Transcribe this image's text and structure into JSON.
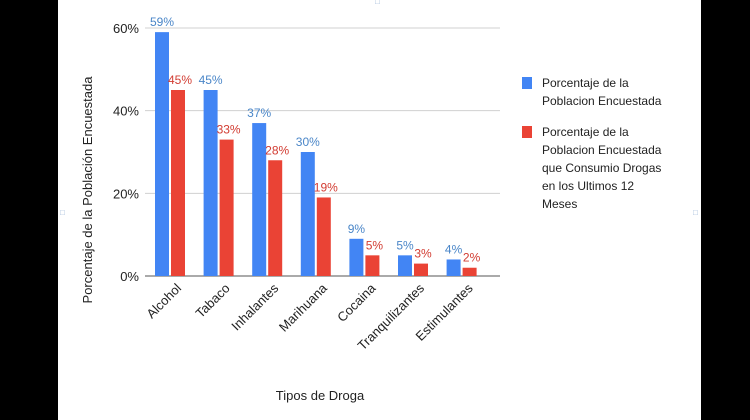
{
  "chart_data": {
    "type": "bar",
    "categories": [
      "Alcohol",
      "Tabaco",
      "Inhalantes",
      "Marihuana",
      "Cocaina",
      "Tranquilizantes",
      "Estimulantes"
    ],
    "series": [
      {
        "name": "Porcentaje de la Poblacion Encuestada",
        "color": "#4285f4",
        "label_color": "#4a86c8",
        "values": [
          59,
          45,
          37,
          30,
          9,
          5,
          4
        ],
        "labels": [
          "59%",
          "45%",
          "37%",
          "30%",
          "9%",
          "5%",
          "4%"
        ]
      },
      {
        "name": "Porcentaje de la Poblacion Encuestada que Consumio Drogas en los Ultimos 12 Meses",
        "color": "#ea4335",
        "label_color": "#d23c32",
        "values": [
          45,
          33,
          28,
          19,
          5,
          3,
          2
        ],
        "labels": [
          "45%",
          "33%",
          "28%",
          "19%",
          "5%",
          "3%",
          "2%"
        ]
      }
    ],
    "y_ticks": [
      "0%",
      "20%",
      "40%",
      "60%"
    ],
    "y_tick_values": [
      0,
      20,
      40,
      60
    ],
    "ylim": [
      0,
      60
    ],
    "xlabel": "Tipos de Droga",
    "ylabel": "Porcentaje de la Población Encuestada",
    "legend": {
      "position": "right",
      "entries": [
        [
          "Porcentaje de la",
          "Poblacion Encuestada"
        ],
        [
          "Porcentaje de la",
          "Poblacion Encuestada",
          "que Consumio Drogas",
          "en los Ultimos 12",
          "Meses"
        ]
      ]
    },
    "grid": true,
    "grid_color": "#d0d0d0"
  }
}
